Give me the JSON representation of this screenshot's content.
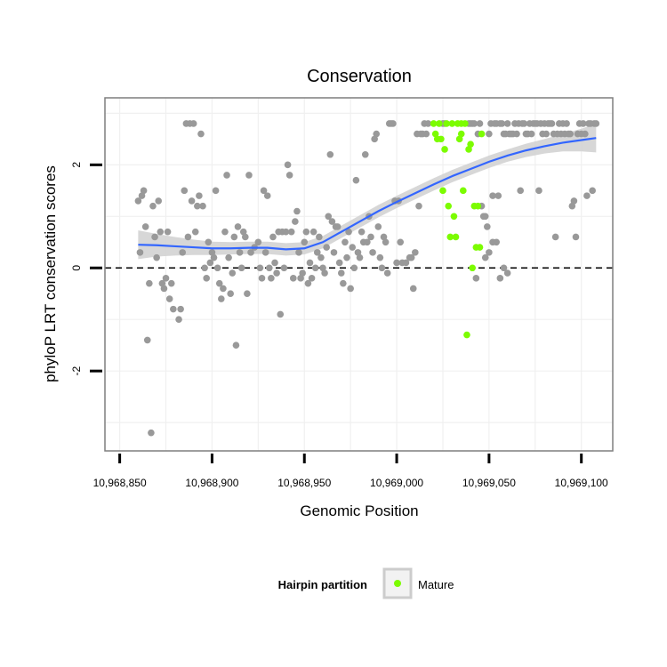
{
  "chart_data": {
    "type": "scatter",
    "title": "Conservation",
    "xlabel": "Genomic Position",
    "ylabel": "phyloP LRT conservation scores",
    "xlim": [
      10968842,
      10969117
    ],
    "ylim": [
      -3.55,
      3.3
    ],
    "x_ticks": [
      10968850,
      10968900,
      10968950,
      10969000,
      10969050,
      10969100
    ],
    "x_tick_labels": [
      "10,968,850",
      "10,968,900",
      "10,968,950",
      "10,969,000",
      "10,969,050",
      "10,969,100"
    ],
    "y_ticks": [
      -2,
      0,
      2
    ],
    "y_tick_labels": [
      "-2",
      "0",
      "2"
    ],
    "grid": true,
    "reference_line": {
      "y": 0,
      "style": "dashed"
    },
    "colors": {
      "other_points": "#999999",
      "mature_points": "#7cfc00",
      "smooth_line": "#3366ff",
      "ribbon": "#d3d3d3",
      "grid": "#f0f0f0",
      "panel_border": "#7f7f7f"
    },
    "legend": {
      "title": "Hairpin partition",
      "position": "bottom",
      "entries": [
        {
          "label": "Mature",
          "color": "#7cfc00"
        }
      ]
    },
    "series": [
      {
        "name": "Other",
        "color": "#999999",
        "points": [
          [
            10968860,
            1.3
          ],
          [
            10968861,
            0.3
          ],
          [
            10968862,
            1.4
          ],
          [
            10968863,
            1.5
          ],
          [
            10968864,
            0.8
          ],
          [
            10968865,
            -1.4
          ],
          [
            10968866,
            -0.3
          ],
          [
            10968867,
            -3.2
          ],
          [
            10968868,
            1.2
          ],
          [
            10968869,
            0.6
          ],
          [
            10968870,
            0.2
          ],
          [
            10968871,
            1.3
          ],
          [
            10968872,
            0.7
          ],
          [
            10968873,
            -0.3
          ],
          [
            10968874,
            -0.4
          ],
          [
            10968875,
            -0.2
          ],
          [
            10968876,
            0.7
          ],
          [
            10968877,
            -0.6
          ],
          [
            10968878,
            -0.3
          ],
          [
            10968879,
            -0.8
          ],
          [
            10968882,
            -1.0
          ],
          [
            10968883,
            -0.8
          ],
          [
            10968884,
            0.3
          ],
          [
            10968885,
            1.5
          ],
          [
            10968886,
            2.8
          ],
          [
            10968887,
            0.6
          ],
          [
            10968888,
            2.8
          ],
          [
            10968889,
            1.3
          ],
          [
            10968890,
            2.8
          ],
          [
            10968891,
            0.7
          ],
          [
            10968892,
            1.2
          ],
          [
            10968893,
            1.4
          ],
          [
            10968894,
            2.6
          ],
          [
            10968895,
            1.2
          ],
          [
            10968896,
            0.0
          ],
          [
            10968897,
            -0.2
          ],
          [
            10968898,
            0.5
          ],
          [
            10968899,
            0.1
          ],
          [
            10968900,
            0.3
          ],
          [
            10968901,
            0.2
          ],
          [
            10968902,
            1.5
          ],
          [
            10968903,
            0.0
          ],
          [
            10968904,
            -0.3
          ],
          [
            10968905,
            -0.6
          ],
          [
            10968906,
            -0.4
          ],
          [
            10968907,
            0.7
          ],
          [
            10968908,
            1.8
          ],
          [
            10968909,
            0.2
          ],
          [
            10968910,
            -0.5
          ],
          [
            10968911,
            -0.1
          ],
          [
            10968912,
            0.6
          ],
          [
            10968913,
            -1.5
          ],
          [
            10968914,
            0.8
          ],
          [
            10968915,
            0.3
          ],
          [
            10968916,
            0.0
          ],
          [
            10968917,
            0.7
          ],
          [
            10968918,
            0.6
          ],
          [
            10968919,
            -0.5
          ],
          [
            10968920,
            1.8
          ],
          [
            10968921,
            0.3
          ],
          [
            10968923,
            0.4
          ],
          [
            10968925,
            0.5
          ],
          [
            10968926,
            0.0
          ],
          [
            10968927,
            -0.2
          ],
          [
            10968928,
            1.5
          ],
          [
            10968929,
            0.3
          ],
          [
            10968930,
            1.4
          ],
          [
            10968931,
            0.0
          ],
          [
            10968932,
            -0.2
          ],
          [
            10968933,
            0.6
          ],
          [
            10968934,
            0.1
          ],
          [
            10968935,
            -0.1
          ],
          [
            10968936,
            0.7
          ],
          [
            10968937,
            -0.9
          ],
          [
            10968938,
            0.7
          ],
          [
            10968939,
            0.0
          ],
          [
            10968940,
            0.7
          ],
          [
            10968941,
            2.0
          ],
          [
            10968942,
            1.8
          ],
          [
            10968943,
            0.7
          ],
          [
            10968944,
            -0.2
          ],
          [
            10968945,
            0.9
          ],
          [
            10968946,
            1.1
          ],
          [
            10968947,
            0.3
          ],
          [
            10968948,
            -0.2
          ],
          [
            10968949,
            -0.1
          ],
          [
            10968950,
            0.5
          ],
          [
            10968951,
            0.7
          ],
          [
            10968952,
            -0.3
          ],
          [
            10968953,
            0.1
          ],
          [
            10968954,
            -0.2
          ],
          [
            10968955,
            0.7
          ],
          [
            10968956,
            0.0
          ],
          [
            10968957,
            0.3
          ],
          [
            10968958,
            0.6
          ],
          [
            10968959,
            0.2
          ],
          [
            10968960,
            0.0
          ],
          [
            10968961,
            -0.1
          ],
          [
            10968962,
            0.4
          ],
          [
            10968963,
            1.0
          ],
          [
            10968964,
            2.2
          ],
          [
            10968965,
            0.9
          ],
          [
            10968966,
            0.3
          ],
          [
            10968967,
            0.8
          ],
          [
            10968968,
            0.8
          ],
          [
            10968969,
            0.1
          ],
          [
            10968970,
            -0.1
          ],
          [
            10968971,
            -0.3
          ],
          [
            10968972,
            0.5
          ],
          [
            10968973,
            0.2
          ],
          [
            10968974,
            0.7
          ],
          [
            10968975,
            -0.4
          ],
          [
            10968976,
            0.4
          ],
          [
            10968977,
            0.0
          ],
          [
            10968978,
            1.7
          ],
          [
            10968979,
            0.3
          ],
          [
            10968980,
            0.2
          ],
          [
            10968981,
            0.7
          ],
          [
            10968982,
            0.5
          ],
          [
            10968983,
            2.2
          ],
          [
            10968984,
            0.5
          ],
          [
            10968985,
            1.0
          ],
          [
            10968986,
            0.6
          ],
          [
            10968987,
            0.3
          ],
          [
            10968988,
            2.5
          ],
          [
            10968989,
            2.6
          ],
          [
            10968990,
            0.8
          ],
          [
            10968991,
            0.2
          ],
          [
            10968992,
            0.0
          ],
          [
            10968993,
            0.6
          ],
          [
            10968994,
            0.5
          ],
          [
            10968995,
            -0.1
          ],
          [
            10968996,
            2.8
          ],
          [
            10968997,
            2.8
          ],
          [
            10968998,
            2.8
          ],
          [
            10968999,
            1.3
          ],
          [
            10969000,
            0.1
          ],
          [
            10969001,
            1.3
          ],
          [
            10969002,
            0.5
          ],
          [
            10969003,
            0.1
          ],
          [
            10969005,
            0.1
          ],
          [
            10969007,
            0.2
          ],
          [
            10969008,
            0.2
          ],
          [
            10969009,
            -0.4
          ],
          [
            10969010,
            0.3
          ],
          [
            10969011,
            2.6
          ],
          [
            10969012,
            1.2
          ],
          [
            10969013,
            2.6
          ],
          [
            10969014,
            2.6
          ],
          [
            10969015,
            2.8
          ],
          [
            10969016,
            2.6
          ],
          [
            10969017,
            2.8
          ],
          [
            10969025,
            2.8
          ],
          [
            10969026,
            2.8
          ],
          [
            10969039,
            2.8
          ],
          [
            10969040,
            2.8
          ],
          [
            10969041,
            2.8
          ],
          [
            10969042,
            2.8
          ],
          [
            10969044,
            2.6
          ],
          [
            10969045,
            2.8
          ],
          [
            10969046,
            1.2
          ],
          [
            10969047,
            1.0
          ],
          [
            10969048,
            1.0
          ],
          [
            10969049,
            0.8
          ],
          [
            10969050,
            2.6
          ],
          [
            10969051,
            2.8
          ],
          [
            10969052,
            1.4
          ],
          [
            10969053,
            2.8
          ],
          [
            10969054,
            2.8
          ],
          [
            10969055,
            1.4
          ],
          [
            10969056,
            2.8
          ],
          [
            10969057,
            2.8
          ],
          [
            10969058,
            2.6
          ],
          [
            10969059,
            2.6
          ],
          [
            10969060,
            2.8
          ],
          [
            10969061,
            2.6
          ],
          [
            10969062,
            2.6
          ],
          [
            10969063,
            2.6
          ],
          [
            10969064,
            2.8
          ],
          [
            10969065,
            2.6
          ],
          [
            10969066,
            2.8
          ],
          [
            10969067,
            1.5
          ],
          [
            10969068,
            2.8
          ],
          [
            10969069,
            2.8
          ],
          [
            10969070,
            2.6
          ],
          [
            10969071,
            2.6
          ],
          [
            10969072,
            2.8
          ],
          [
            10969073,
            2.6
          ],
          [
            10969074,
            2.8
          ],
          [
            10969075,
            2.8
          ],
          [
            10969076,
            2.8
          ],
          [
            10969077,
            1.5
          ],
          [
            10969078,
            2.8
          ],
          [
            10969079,
            2.6
          ],
          [
            10969080,
            2.8
          ],
          [
            10969081,
            2.6
          ],
          [
            10969082,
            2.8
          ],
          [
            10969083,
            2.8
          ],
          [
            10969084,
            2.8
          ],
          [
            10969085,
            2.6
          ],
          [
            10969086,
            0.6
          ],
          [
            10969087,
            2.6
          ],
          [
            10969088,
            2.8
          ],
          [
            10969089,
            2.6
          ],
          [
            10969090,
            2.8
          ],
          [
            10969091,
            2.6
          ],
          [
            10969092,
            2.8
          ],
          [
            10969093,
            2.6
          ],
          [
            10969094,
            2.6
          ],
          [
            10969095,
            1.2
          ],
          [
            10969096,
            1.3
          ],
          [
            10969097,
            0.6
          ],
          [
            10969098,
            2.6
          ],
          [
            10969099,
            2.8
          ],
          [
            10969100,
            2.6
          ],
          [
            10969101,
            2.8
          ],
          [
            10969102,
            2.6
          ],
          [
            10969103,
            1.4
          ],
          [
            10969104,
            2.8
          ],
          [
            10969105,
            2.8
          ],
          [
            10969106,
            1.5
          ],
          [
            10969107,
            2.8
          ],
          [
            10969108,
            2.8
          ],
          [
            10969043,
            -0.2
          ],
          [
            10969054,
            0.5
          ],
          [
            10969056,
            -0.2
          ],
          [
            10969058,
            0.0
          ],
          [
            10969060,
            -0.1
          ],
          [
            10969048,
            0.2
          ],
          [
            10969050,
            0.3
          ],
          [
            10969052,
            0.5
          ]
        ]
      },
      {
        "name": "Mature",
        "color": "#7cfc00",
        "points": [
          [
            10969020,
            2.8
          ],
          [
            10969021,
            2.6
          ],
          [
            10969022,
            2.5
          ],
          [
            10969023,
            2.8
          ],
          [
            10969024,
            2.5
          ],
          [
            10969025,
            1.5
          ],
          [
            10969026,
            2.3
          ],
          [
            10969027,
            2.8
          ],
          [
            10969028,
            1.2
          ],
          [
            10969029,
            0.6
          ],
          [
            10969030,
            2.8
          ],
          [
            10969031,
            1.0
          ],
          [
            10969032,
            0.6
          ],
          [
            10969033,
            2.8
          ],
          [
            10969034,
            2.5
          ],
          [
            10969035,
            2.8
          ],
          [
            10969036,
            1.5
          ],
          [
            10969037,
            2.8
          ],
          [
            10969038,
            -1.3
          ],
          [
            10969039,
            2.3
          ],
          [
            10969040,
            2.4
          ],
          [
            10969041,
            0.0
          ],
          [
            10969042,
            1.2
          ],
          [
            10969043,
            0.4
          ],
          [
            10969044,
            1.2
          ],
          [
            10969045,
            0.4
          ],
          [
            10969046,
            2.6
          ],
          [
            10969035,
            2.6
          ]
        ]
      }
    ],
    "smooth": {
      "x": [
        10968860,
        10968870,
        10968880,
        10968890,
        10968900,
        10968910,
        10968920,
        10968930,
        10968940,
        10968950,
        10968960,
        10968970,
        10968980,
        10968990,
        10969000,
        10969010,
        10969020,
        10969030,
        10969040,
        10969050,
        10969060,
        10969070,
        10969080,
        10969090,
        10969100,
        10969108
      ],
      "y": [
        0.45,
        0.44,
        0.42,
        0.4,
        0.38,
        0.38,
        0.39,
        0.39,
        0.36,
        0.38,
        0.5,
        0.7,
        0.9,
        1.1,
        1.28,
        1.45,
        1.62,
        1.78,
        1.92,
        2.06,
        2.18,
        2.28,
        2.36,
        2.43,
        2.48,
        2.52
      ],
      "se": [
        0.28,
        0.22,
        0.18,
        0.15,
        0.13,
        0.12,
        0.12,
        0.12,
        0.12,
        0.12,
        0.12,
        0.12,
        0.12,
        0.12,
        0.12,
        0.12,
        0.12,
        0.12,
        0.12,
        0.12,
        0.12,
        0.13,
        0.14,
        0.17,
        0.22,
        0.28
      ]
    }
  }
}
